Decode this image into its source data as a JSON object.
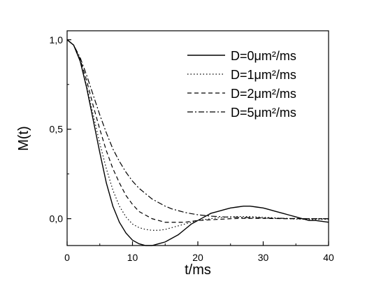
{
  "chart_data": {
    "type": "line",
    "title": "",
    "xlabel": "t/ms",
    "ylabel": "M(t)",
    "xlim": [
      0,
      40
    ],
    "ylim": [
      -0.15,
      1.05
    ],
    "x_ticks": [
      0,
      10,
      20,
      30,
      40
    ],
    "x_tick_labels": [
      "0",
      "10",
      "20",
      "30",
      "40"
    ],
    "y_ticks": [
      0.0,
      0.5,
      1.0
    ],
    "y_tick_labels": [
      "0,0",
      "0,5",
      "1,0"
    ],
    "grid": false,
    "legend_position": "top-right",
    "x": [
      0,
      1,
      2,
      3,
      4,
      5,
      6,
      7,
      8,
      9,
      10,
      11,
      12,
      13,
      14,
      15,
      16,
      17,
      18,
      19,
      20,
      21,
      22,
      23,
      24,
      25,
      26,
      27,
      28,
      29,
      30,
      31,
      32,
      33,
      34,
      35,
      36,
      37,
      38,
      39,
      40
    ],
    "series": [
      {
        "name": "D=0μm²/ms",
        "dash": "solid",
        "values": [
          1.0,
          0.97,
          0.88,
          0.73,
          0.55,
          0.37,
          0.2,
          0.07,
          -0.02,
          -0.08,
          -0.12,
          -0.14,
          -0.15,
          -0.15,
          -0.14,
          -0.13,
          -0.11,
          -0.09,
          -0.06,
          -0.03,
          -0.01,
          0.01,
          0.03,
          0.04,
          0.05,
          0.06,
          0.065,
          0.07,
          0.07,
          0.065,
          0.06,
          0.05,
          0.04,
          0.03,
          0.02,
          0.01,
          0.0,
          -0.01,
          -0.01,
          -0.015,
          -0.02
        ]
      },
      {
        "name": "D=1μm²/ms",
        "dash": "dotted",
        "values": [
          1.0,
          0.97,
          0.88,
          0.74,
          0.58,
          0.42,
          0.28,
          0.16,
          0.07,
          0.01,
          -0.03,
          -0.05,
          -0.06,
          -0.065,
          -0.065,
          -0.06,
          -0.05,
          -0.04,
          -0.03,
          -0.02,
          -0.01,
          -0.005,
          0.0,
          0.005,
          0.008,
          0.01,
          0.012,
          0.012,
          0.012,
          0.01,
          0.008,
          0.006,
          0.004,
          0.002,
          0.0,
          -0.002,
          -0.003,
          -0.004,
          -0.004,
          -0.004,
          -0.003
        ]
      },
      {
        "name": "D=2μm²/ms",
        "dash": "dashed",
        "values": [
          1.0,
          0.97,
          0.89,
          0.77,
          0.63,
          0.5,
          0.38,
          0.28,
          0.2,
          0.13,
          0.08,
          0.04,
          0.02,
          0.0,
          -0.01,
          -0.02,
          -0.02,
          -0.02,
          -0.02,
          -0.015,
          -0.01,
          -0.008,
          -0.006,
          -0.004,
          -0.002,
          0.0,
          0.001,
          0.002,
          0.002,
          0.002,
          0.002,
          0.001,
          0.001,
          0.0,
          0.0,
          0.0,
          0.0,
          0.0,
          0.0,
          0.0,
          0.0
        ]
      },
      {
        "name": "D=5μm²/ms",
        "dash": "dashdot",
        "values": [
          1.0,
          0.97,
          0.9,
          0.8,
          0.69,
          0.58,
          0.48,
          0.39,
          0.32,
          0.26,
          0.21,
          0.17,
          0.14,
          0.11,
          0.09,
          0.07,
          0.055,
          0.045,
          0.035,
          0.028,
          0.022,
          0.018,
          0.014,
          0.012,
          0.01,
          0.009,
          0.008,
          0.007,
          0.006,
          0.005,
          0.004,
          0.003,
          0.002,
          0.002,
          0.001,
          0.001,
          0.0,
          0.0,
          0.0,
          0.0,
          0.0
        ]
      }
    ],
    "colors": {
      "line": "#000000",
      "axis": "#000000",
      "background": "#ffffff"
    }
  }
}
